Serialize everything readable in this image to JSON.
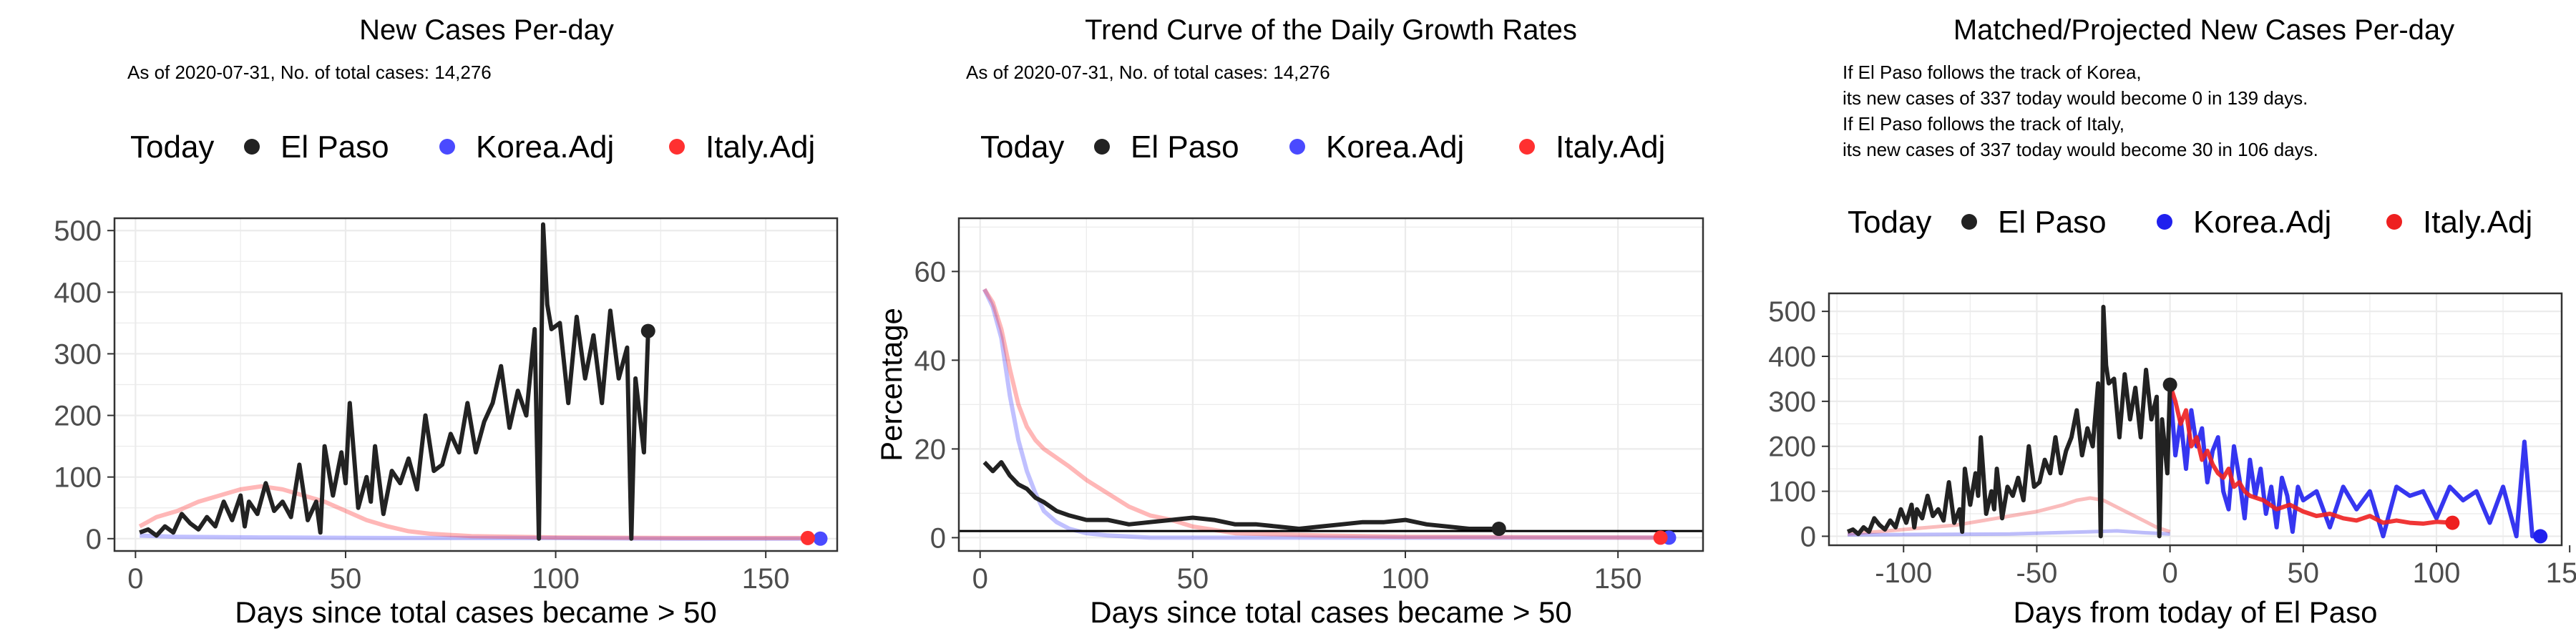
{
  "chart_data": [
    {
      "type": "line",
      "title": "New Cases Per-day",
      "subtitle_lines": [
        "As of 2020-07-31, No. of total cases: 14,276"
      ],
      "legend": {
        "title": "Today",
        "entries": [
          "El Paso",
          "Korea.Adj",
          "Italy.Adj"
        ],
        "position": "top"
      },
      "xlabel": "Days since total cases became > 50",
      "ylabel": "",
      "xlim": [
        -5,
        167
      ],
      "ylim": [
        -20,
        520
      ],
      "xticks": [
        0,
        50,
        100,
        150
      ],
      "yticks": [
        0,
        100,
        200,
        300,
        400,
        500
      ],
      "grid": true,
      "colors": {
        "El Paso": "#222222",
        "Korea.Adj": "#4a4aff",
        "Italy.Adj": "#ff3030"
      },
      "series": [
        {
          "name": "El Paso",
          "x": [
            1,
            3,
            5,
            7,
            9,
            11,
            13,
            15,
            17,
            19,
            21,
            23,
            25,
            26,
            27,
            29,
            31,
            33,
            35,
            37,
            39,
            41,
            43,
            44,
            45,
            47,
            49,
            50,
            51,
            53,
            55,
            56,
            57,
            59,
            61,
            63,
            65,
            67,
            69,
            71,
            73,
            75,
            77,
            79,
            81,
            83,
            85,
            87,
            89,
            91,
            93,
            95,
            96,
            97,
            98,
            99,
            101,
            103,
            105,
            107,
            109,
            111,
            113,
            115,
            117,
            118,
            119,
            121,
            122
          ],
          "y": [
            10,
            15,
            5,
            20,
            10,
            40,
            25,
            15,
            35,
            20,
            60,
            30,
            70,
            20,
            60,
            40,
            90,
            45,
            60,
            35,
            120,
            30,
            60,
            10,
            150,
            70,
            140,
            90,
            220,
            50,
            100,
            60,
            150,
            40,
            110,
            90,
            130,
            80,
            200,
            110,
            120,
            170,
            140,
            220,
            140,
            190,
            220,
            280,
            180,
            240,
            200,
            340,
            0,
            510,
            380,
            340,
            350,
            220,
            360,
            260,
            330,
            220,
            370,
            260,
            310,
            0,
            260,
            140,
            337
          ]
        },
        {
          "name": "Korea.Adj",
          "x": [
            1,
            10,
            30,
            60,
            100,
            130,
            163
          ],
          "y": [
            5,
            3,
            2,
            1,
            1,
            0,
            0
          ]
        },
        {
          "name": "Italy.Adj",
          "x": [
            1,
            5,
            10,
            15,
            20,
            25,
            30,
            35,
            40,
            45,
            50,
            55,
            60,
            65,
            70,
            80,
            100,
            130,
            160
          ],
          "y": [
            20,
            35,
            45,
            60,
            70,
            80,
            85,
            80,
            70,
            60,
            45,
            30,
            20,
            12,
            8,
            4,
            2,
            1,
            1
          ]
        }
      ]
    },
    {
      "type": "line",
      "title": "Trend Curve of the Daily Growth Rates",
      "subtitle_lines": [
        "As of 2020-07-31, No. of total cases: 14,276"
      ],
      "legend": {
        "title": "Today",
        "entries": [
          "El Paso",
          "Korea.Adj",
          "Italy.Adj"
        ],
        "position": "top"
      },
      "xlabel": "Days since total cases became > 50",
      "ylabel": "Percentage",
      "xlim": [
        -5,
        170
      ],
      "ylim": [
        -3,
        72
      ],
      "xticks": [
        0,
        50,
        100,
        150
      ],
      "yticks": [
        0,
        20,
        40,
        60
      ],
      "grid": true,
      "hline": 1.5,
      "colors": {
        "El Paso": "#222222",
        "Korea.Adj": "#4a4aff",
        "Italy.Adj": "#ff3030"
      },
      "series": [
        {
          "name": "El Paso",
          "x": [
            1,
            3,
            5,
            7,
            9,
            11,
            13,
            15,
            18,
            21,
            25,
            30,
            35,
            40,
            45,
            50,
            55,
            60,
            65,
            70,
            75,
            80,
            85,
            90,
            95,
            100,
            105,
            110,
            115,
            122
          ],
          "y": [
            17,
            15,
            17,
            14,
            12,
            11,
            9,
            8,
            6,
            5,
            4,
            4,
            3,
            3.5,
            4,
            4.5,
            4,
            3,
            3,
            2.5,
            2,
            2.5,
            3,
            3.5,
            3.5,
            4,
            3,
            2.5,
            2,
            2
          ]
        },
        {
          "name": "Korea.Adj",
          "x": [
            1,
            3,
            5,
            7,
            9,
            11,
            13,
            15,
            18,
            21,
            25,
            30,
            40,
            60,
            100,
            162
          ],
          "y": [
            56,
            52,
            45,
            32,
            22,
            15,
            10,
            6,
            3.5,
            2,
            1,
            0.5,
            0,
            0,
            0,
            0
          ]
        },
        {
          "name": "Italy.Adj",
          "x": [
            1,
            3,
            5,
            7,
            9,
            11,
            13,
            15,
            18,
            21,
            25,
            30,
            35,
            40,
            45,
            50,
            60,
            80,
            100,
            160
          ],
          "y": [
            56,
            53,
            47,
            38,
            30,
            25,
            22,
            20,
            18,
            16,
            13,
            10,
            7,
            5,
            4,
            2.5,
            1,
            0.5,
            0.2,
            0
          ]
        }
      ]
    },
    {
      "type": "line",
      "title": "Matched/Projected New Cases Per-day",
      "subtitle_lines": [
        "If El Paso follows the track of Korea,",
        "its new cases of 337 today would become 0 in 139 days.",
        "If El Paso follows the track of Italy,",
        "its new cases of 337 today would become 30 in 106 days."
      ],
      "legend": {
        "title": "Today",
        "entries": [
          "El Paso",
          "Korea.Adj",
          "Italy.Adj"
        ],
        "position": "top"
      },
      "xlabel": "Days from today of El Paso",
      "ylabel": "",
      "xlim": [
        -128,
        147
      ],
      "ylim": [
        -20,
        540
      ],
      "xticks": [
        -100,
        -50,
        0,
        50,
        100,
        150
      ],
      "yticks": [
        0,
        100,
        200,
        300,
        400,
        500
      ],
      "grid": true,
      "colors": {
        "El Paso": "#222222",
        "Korea.Adj": "#2020ee",
        "Italy.Adj": "#ee2020"
      },
      "series": [
        {
          "name": "El Paso",
          "x": [
            -121,
            -119,
            -117,
            -115,
            -113,
            -111,
            -109,
            -107,
            -105,
            -103,
            -101,
            -99,
            -97,
            -96,
            -95,
            -93,
            -91,
            -89,
            -87,
            -85,
            -83,
            -81,
            -79,
            -78,
            -77,
            -75,
            -73,
            -72,
            -71,
            -69,
            -67,
            -66,
            -65,
            -63,
            -61,
            -59,
            -57,
            -55,
            -53,
            -51,
            -49,
            -47,
            -45,
            -43,
            -41,
            -39,
            -37,
            -35,
            -33,
            -31,
            -29,
            -27,
            -26,
            -25,
            -24,
            -23,
            -21,
            -19,
            -17,
            -15,
            -13,
            -11,
            -9,
            -7,
            -5,
            -4,
            -3,
            -1,
            0
          ],
          "y": [
            10,
            15,
            5,
            20,
            10,
            40,
            25,
            15,
            35,
            20,
            60,
            30,
            70,
            20,
            60,
            40,
            90,
            45,
            60,
            35,
            120,
            30,
            60,
            10,
            150,
            70,
            140,
            90,
            220,
            50,
            100,
            60,
            150,
            40,
            110,
            90,
            130,
            80,
            200,
            110,
            120,
            170,
            140,
            220,
            140,
            190,
            220,
            280,
            180,
            240,
            200,
            340,
            0,
            510,
            380,
            340,
            350,
            220,
            360,
            260,
            330,
            220,
            370,
            260,
            310,
            0,
            260,
            140,
            337
          ]
        },
        {
          "name": "Korea.Adj",
          "x": [
            0,
            2,
            4,
            6,
            8,
            10,
            12,
            14,
            16,
            18,
            20,
            22,
            24,
            26,
            28,
            30,
            32,
            34,
            36,
            38,
            40,
            42,
            44,
            46,
            48,
            50,
            55,
            60,
            65,
            70,
            75,
            80,
            85,
            90,
            95,
            100,
            105,
            110,
            115,
            120,
            125,
            130,
            133,
            136,
            139
          ],
          "y": [
            337,
            180,
            260,
            150,
            280,
            200,
            240,
            120,
            190,
            220,
            100,
            60,
            200,
            130,
            40,
            170,
            90,
            150,
            50,
            110,
            20,
            130,
            90,
            10,
            110,
            80,
            100,
            20,
            110,
            60,
            100,
            0,
            110,
            90,
            100,
            40,
            110,
            80,
            100,
            30,
            110,
            0,
            210,
            0,
            0
          ]
        },
        {
          "name": "Italy.Adj",
          "x": [
            0,
            2,
            4,
            6,
            8,
            10,
            12,
            14,
            16,
            18,
            20,
            22,
            24,
            26,
            28,
            30,
            35,
            40,
            45,
            50,
            55,
            60,
            65,
            70,
            75,
            80,
            85,
            90,
            95,
            100,
            106
          ],
          "y": [
            337,
            300,
            250,
            280,
            200,
            220,
            170,
            190,
            160,
            140,
            130,
            150,
            110,
            120,
            100,
            90,
            80,
            60,
            70,
            55,
            45,
            50,
            40,
            35,
            45,
            30,
            35,
            30,
            28,
            32,
            30
          ]
        },
        {
          "name": "Italy.Adj (history)",
          "x": [
            -121,
            -110,
            -100,
            -90,
            -80,
            -70,
            -60,
            -50,
            -40,
            -35,
            -30,
            -25,
            -20,
            -15,
            -10,
            -5,
            0
          ],
          "y": [
            5,
            10,
            15,
            20,
            25,
            35,
            45,
            55,
            70,
            80,
            85,
            80,
            65,
            50,
            35,
            20,
            10
          ]
        },
        {
          "name": "Korea.Adj (history)",
          "x": [
            -121,
            -60,
            -30,
            -20,
            -10,
            0
          ],
          "y": [
            3,
            5,
            10,
            12,
            8,
            5
          ]
        }
      ]
    }
  ]
}
